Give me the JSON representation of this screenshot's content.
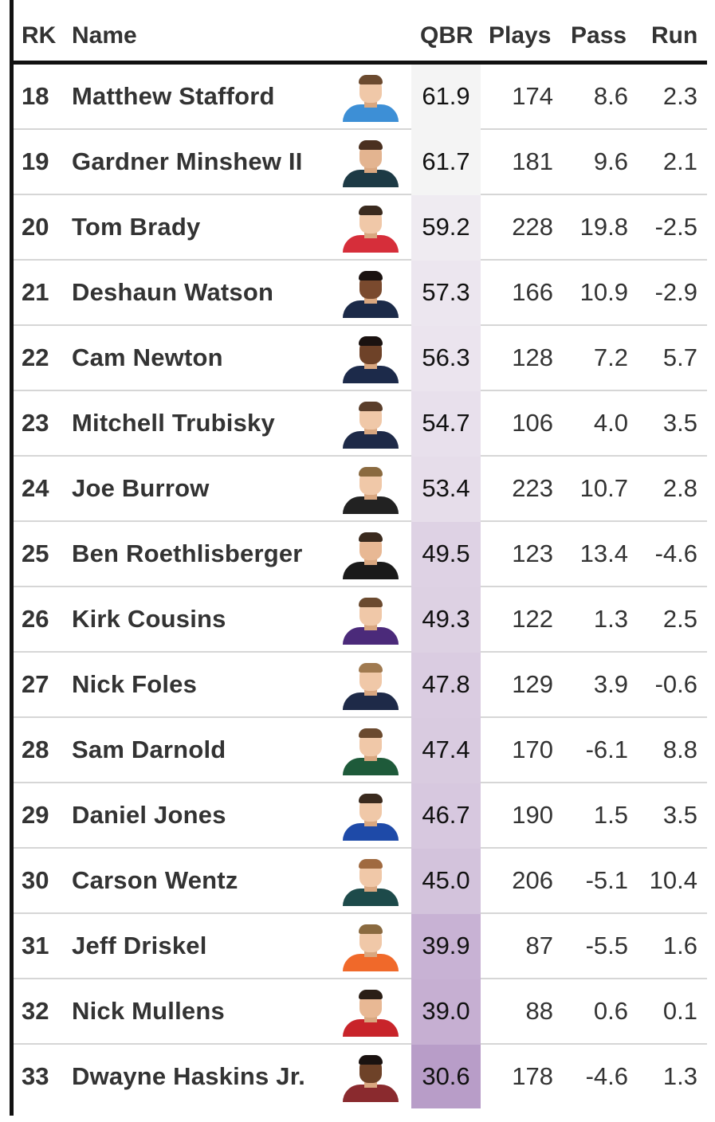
{
  "headers": {
    "rank": "RK",
    "name": "Name",
    "qbr": "QBR",
    "plays": "Plays",
    "pass": "Pass",
    "run": "Run"
  },
  "rows": [
    {
      "rank": "18",
      "name": "Matthew Stafford",
      "qbr": "61.9",
      "plays": "174",
      "pass": "8.6",
      "run": "2.3",
      "qbr_bg": "#f4f4f4",
      "skin": "#f0c8a8",
      "hair": "#6b4a2f",
      "jersey": "#3d8fd6"
    },
    {
      "rank": "19",
      "name": "Gardner Minshew II",
      "qbr": "61.7",
      "plays": "181",
      "pass": "9.6",
      "run": "2.1",
      "qbr_bg": "#f4f4f4",
      "skin": "#e3b490",
      "hair": "#4a3020",
      "jersey": "#1d3a45"
    },
    {
      "rank": "20",
      "name": "Tom Brady",
      "qbr": "59.2",
      "plays": "228",
      "pass": "19.8",
      "run": "-2.5",
      "qbr_bg": "#efebf1",
      "skin": "#f0c8a8",
      "hair": "#3a2a1e",
      "jersey": "#d62e3a"
    },
    {
      "rank": "21",
      "name": "Deshaun Watson",
      "qbr": "57.3",
      "plays": "166",
      "pass": "10.9",
      "run": "-2.9",
      "qbr_bg": "#ece6ef",
      "skin": "#7a4a2e",
      "hair": "#1a1210",
      "jersey": "#1b2a48"
    },
    {
      "rank": "22",
      "name": "Cam Newton",
      "qbr": "56.3",
      "plays": "128",
      "pass": "7.2",
      "run": "5.7",
      "qbr_bg": "#ebe4ee",
      "skin": "#6e4228",
      "hair": "#1a1210",
      "jersey": "#1c2a4a"
    },
    {
      "rank": "23",
      "name": "Mitchell Trubisky",
      "qbr": "54.7",
      "plays": "106",
      "pass": "4.0",
      "run": "3.5",
      "qbr_bg": "#e8e0ec",
      "skin": "#f0c8a8",
      "hair": "#5a3e2b",
      "jersey": "#1e2a48"
    },
    {
      "rank": "24",
      "name": "Joe Burrow",
      "qbr": "53.4",
      "plays": "223",
      "pass": "10.7",
      "run": "2.8",
      "qbr_bg": "#e6ddea",
      "skin": "#f0c8a8",
      "hair": "#8a6a40",
      "jersey": "#222222"
    },
    {
      "rank": "25",
      "name": "Ben Roethlisberger",
      "qbr": "49.5",
      "plays": "123",
      "pass": "13.4",
      "run": "-4.6",
      "qbr_bg": "#ded2e4",
      "skin": "#e8b894",
      "hair": "#3a2a1e",
      "jersey": "#1a1a1a"
    },
    {
      "rank": "26",
      "name": "Kirk Cousins",
      "qbr": "49.3",
      "plays": "122",
      "pass": "1.3",
      "run": "2.5",
      "qbr_bg": "#ddd1e3",
      "skin": "#f0c8a8",
      "hair": "#6b4a2f",
      "jersey": "#4b2a7a"
    },
    {
      "rank": "27",
      "name": "Nick Foles",
      "qbr": "47.8",
      "plays": "129",
      "pass": "3.9",
      "run": "-0.6",
      "qbr_bg": "#dacce1",
      "skin": "#f0c8a8",
      "hair": "#a07a50",
      "jersey": "#1e2a48"
    },
    {
      "rank": "28",
      "name": "Sam Darnold",
      "qbr": "47.4",
      "plays": "170",
      "pass": "-6.1",
      "run": "8.8",
      "qbr_bg": "#d9cbe0",
      "skin": "#f0c8a8",
      "hair": "#6b4a2f",
      "jersey": "#1e5a3a"
    },
    {
      "rank": "29",
      "name": "Daniel Jones",
      "qbr": "46.7",
      "plays": "190",
      "pass": "1.5",
      "run": "3.5",
      "qbr_bg": "#d7c8df",
      "skin": "#f0c8a8",
      "hair": "#3a2a1e",
      "jersey": "#1e4aa8"
    },
    {
      "rank": "30",
      "name": "Carson Wentz",
      "qbr": "45.0",
      "plays": "206",
      "pass": "-5.1",
      "run": "10.4",
      "qbr_bg": "#d3c3dc",
      "skin": "#f0c8a8",
      "hair": "#a06a40",
      "jersey": "#1d4a4a"
    },
    {
      "rank": "31",
      "name": "Jeff Driskel",
      "qbr": "39.9",
      "plays": "87",
      "pass": "-5.5",
      "run": "1.6",
      "qbr_bg": "#c8b2d4",
      "skin": "#f0c8a8",
      "hair": "#8a6a40",
      "jersey": "#f0692a"
    },
    {
      "rank": "32",
      "name": "Nick Mullens",
      "qbr": "39.0",
      "plays": "88",
      "pass": "0.6",
      "run": "0.1",
      "qbr_bg": "#c6afd2",
      "skin": "#e8b894",
      "hair": "#2a1e16",
      "jersey": "#c8242a"
    },
    {
      "rank": "33",
      "name": "Dwayne Haskins Jr.",
      "qbr": "30.6",
      "plays": "178",
      "pass": "-4.6",
      "run": "1.3",
      "qbr_bg": "#b89dc8",
      "skin": "#6e4228",
      "hair": "#1a1210",
      "jersey": "#8a2a2e"
    }
  ]
}
